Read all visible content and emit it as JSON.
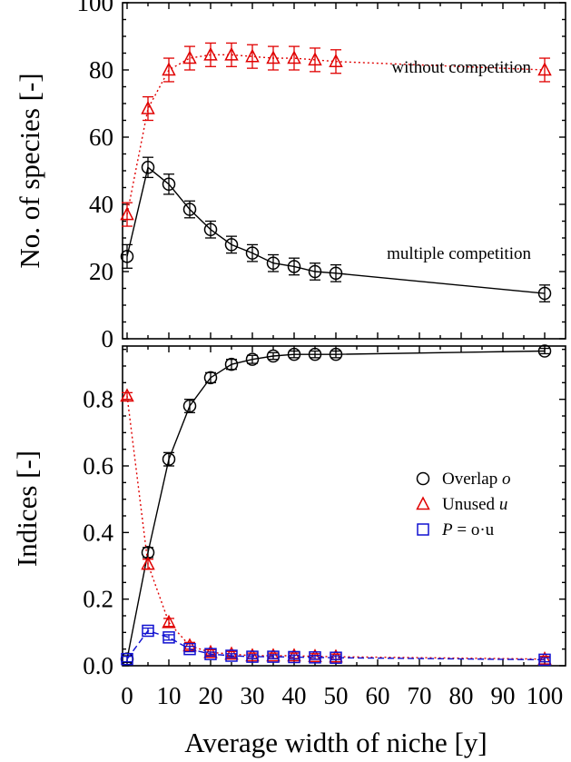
{
  "chart_data": [
    {
      "type": "line",
      "panel": "top",
      "ylabel": "No. of species [-]",
      "ylim": [
        0,
        100
      ],
      "yticks": [
        "0",
        "20",
        "40",
        "60",
        "80",
        "100"
      ],
      "x_categories": [
        0,
        5,
        10,
        15,
        20,
        25,
        30,
        35,
        40,
        45,
        50,
        100
      ],
      "series": [
        {
          "key": "without",
          "color": "#e00000",
          "marker": "triangle",
          "line": "dotted",
          "values": [
            37,
            68.5,
            80,
            83.5,
            84.5,
            84.5,
            84,
            83.5,
            83.5,
            83,
            82.5,
            80
          ],
          "errors": [
            3.5,
            3.5,
            3.5,
            3.5,
            3.5,
            3.5,
            3.5,
            3.5,
            3.5,
            3.5,
            3.5,
            3.5
          ]
        },
        {
          "key": "multiple",
          "color": "#000000",
          "marker": "circle",
          "line": "solid",
          "values": [
            24.5,
            51,
            46,
            38.5,
            32.5,
            28,
            25.5,
            22.5,
            21.5,
            20,
            19.5,
            13.5
          ],
          "errors": [
            3.5,
            3,
            3,
            2.5,
            2.5,
            2.5,
            2.5,
            2.5,
            2.5,
            2.5,
            2.5,
            2.5
          ]
        }
      ],
      "annotations": {
        "without": "without competition",
        "multiple": "multiple competition"
      }
    },
    {
      "type": "line",
      "panel": "bottom",
      "ylabel": "Indices [-]",
      "xlabel": "Average width of niche [y]",
      "ylim": [
        0,
        0.96
      ],
      "yticks": [
        "0.0",
        "0.2",
        "0.4",
        "0.6",
        "0.8"
      ],
      "x_categories": [
        0,
        5,
        10,
        15,
        20,
        25,
        30,
        35,
        40,
        45,
        50,
        100
      ],
      "xticks": [
        "0",
        "10",
        "20",
        "30",
        "40",
        "50",
        "60",
        "70",
        "80",
        "90",
        "100"
      ],
      "series": [
        {
          "key": "overlap",
          "color": "#000000",
          "marker": "circle",
          "line": "solid",
          "values": [
            0.02,
            0.34,
            0.62,
            0.78,
            0.865,
            0.905,
            0.92,
            0.93,
            0.935,
            0.935,
            0.935,
            0.945
          ],
          "errors": [
            0.01,
            0.015,
            0.02,
            0.02,
            0.015,
            0.015,
            0.012,
            0.01,
            0.01,
            0.01,
            0.01,
            0.008
          ]
        },
        {
          "key": "unused",
          "color": "#e00000",
          "marker": "triangle",
          "line": "dotted",
          "values": [
            0.81,
            0.305,
            0.13,
            0.06,
            0.04,
            0.035,
            0.03,
            0.03,
            0.03,
            0.028,
            0.027,
            0.02
          ],
          "errors": [
            0.01,
            0.015,
            0.012,
            0.01,
            0.008,
            0.008,
            0.008,
            0.008,
            0.008,
            0.008,
            0.008,
            0.008
          ]
        },
        {
          "key": "product",
          "color": "#1010d0",
          "marker": "square",
          "line": "dashed",
          "values": [
            0.02,
            0.105,
            0.085,
            0.05,
            0.035,
            0.03,
            0.027,
            0.027,
            0.026,
            0.025,
            0.024,
            0.018
          ],
          "errors": [
            0.008,
            0.008,
            0.008,
            0.008,
            0.006,
            0.006,
            0.006,
            0.006,
            0.006,
            0.006,
            0.006,
            0.006
          ]
        }
      ],
      "legend": [
        {
          "key": "overlap",
          "label": "Overlap ",
          "symbol": "o"
        },
        {
          "key": "unused",
          "label": "Unused ",
          "symbol": "u"
        },
        {
          "key": "product",
          "label": "P",
          "rest": " = o·u"
        }
      ],
      "legend_position": "right"
    }
  ]
}
